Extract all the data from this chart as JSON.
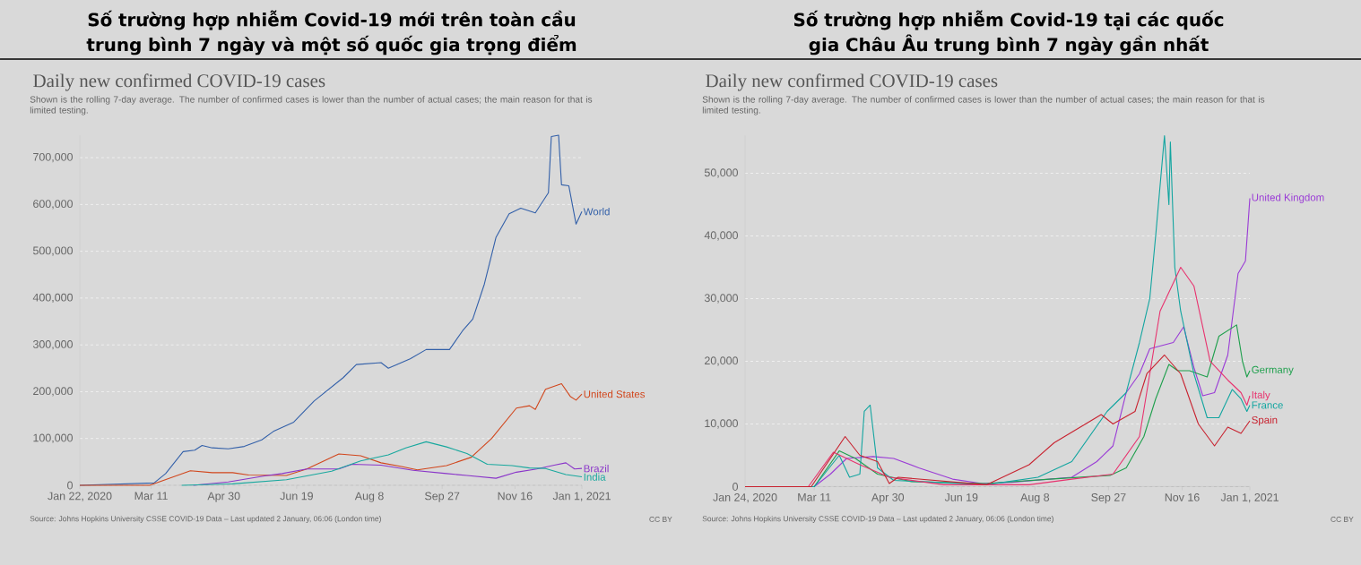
{
  "chart_data": [
    {
      "type": "line",
      "title": "Số trường hợp nhiễm Covid-19 mới trên toàn cầu trung bình 7 ngày và một số quốc gia trọng điểm",
      "subtitle": "Daily new confirmed COVID-19 cases",
      "annotations": [
        "Shown is the rolling 7-day average. The number of confirmed cases is lower than the number of actual cases; the main reason for that is limited testing.",
        "Source: Johns Hopkins University CSSE COVID-19 Data – Last updated 2 January, 06:06 (London time)",
        "CC BY"
      ],
      "xlim": [
        "2020-01-22",
        "2021-01-01"
      ],
      "xticks": [
        {
          "value": "2020-01-22",
          "label": "Jan 22, 2020"
        },
        {
          "value": "2020-03-11",
          "label": "Mar 11"
        },
        {
          "value": "2020-04-30",
          "label": "Apr 30"
        },
        {
          "value": "2020-06-19",
          "label": "Jun 19"
        },
        {
          "value": "2020-08-08",
          "label": "Aug 8"
        },
        {
          "value": "2020-09-27",
          "label": "Sep 27"
        },
        {
          "value": "2020-11-16",
          "label": "Nov 16"
        },
        {
          "value": "2021-01-01",
          "label": "Jan 1, 2021"
        }
      ],
      "ylim": [
        0,
        748000
      ],
      "yticks": [
        0,
        {
          "value": 100000,
          "label": "100,000"
        },
        {
          "value": 200000,
          "label": "200,000"
        },
        {
          "value": 300000,
          "label": "300,000"
        },
        {
          "value": 400000,
          "label": "400,000"
        },
        {
          "value": 500000,
          "label": "500,000"
        },
        {
          "value": 600000,
          "label": "600,000"
        },
        {
          "value": 700000,
          "label": "700,000"
        }
      ],
      "grid": "y",
      "series": [
        {
          "name": "World",
          "color": "#3360a9",
          "x": [
            "2020-01-22",
            "2020-03-13",
            "2020-03-21",
            "2020-04-02",
            "2020-04-10",
            "2020-04-15",
            "2020-04-22",
            "2020-05-03",
            "2020-05-14",
            "2020-05-26",
            "2020-06-03",
            "2020-06-17",
            "2020-07-01",
            "2020-07-21",
            "2020-07-30",
            "2020-08-16",
            "2020-08-21",
            "2020-09-05",
            "2020-09-16",
            "2020-10-02",
            "2020-10-11",
            "2020-10-18",
            "2020-10-26",
            "2020-11-03",
            "2020-11-12",
            "2020-11-20",
            "2020-11-30",
            "2020-12-09",
            "2020-12-11",
            "2020-12-16",
            "2020-12-18",
            "2020-12-23",
            "2020-12-28",
            "2021-01-01"
          ],
          "values": [
            0,
            5000,
            25000,
            72000,
            75000,
            85000,
            80000,
            78000,
            83000,
            97000,
            115000,
            135000,
            180000,
            230000,
            258000,
            262000,
            250000,
            270000,
            290000,
            290000,
            330000,
            355000,
            430000,
            530000,
            580000,
            592000,
            582000,
            625000,
            745000,
            748000,
            642000,
            640000,
            558000,
            585000
          ]
        },
        {
          "name": "United States",
          "color": "#d1461c",
          "x": [
            "2020-01-22",
            "2020-03-10",
            "2020-04-07",
            "2020-04-22",
            "2020-05-06",
            "2020-05-17",
            "2020-06-12",
            "2020-06-26",
            "2020-07-18",
            "2020-08-02",
            "2020-08-16",
            "2020-08-30",
            "2020-09-10",
            "2020-09-30",
            "2020-10-17",
            "2020-10-31",
            "2020-11-17",
            "2020-11-26",
            "2020-11-30",
            "2020-12-07",
            "2020-12-18",
            "2020-12-24",
            "2020-12-28",
            "2021-01-01"
          ],
          "values": [
            0,
            0,
            31000,
            27000,
            27000,
            22000,
            21000,
            35000,
            67000,
            63000,
            48000,
            40000,
            33000,
            42000,
            60000,
            100000,
            165000,
            170000,
            162000,
            205000,
            217000,
            190000,
            182000,
            195000
          ]
        },
        {
          "name": "Brazil",
          "color": "#8a35c9",
          "x": [
            "2020-04-09",
            "2020-05-03",
            "2020-05-28",
            "2020-06-09",
            "2020-06-26",
            "2020-07-18",
            "2020-07-27",
            "2020-08-16",
            "2020-09-07",
            "2020-09-30",
            "2020-10-14",
            "2020-11-03",
            "2020-11-17",
            "2020-12-01",
            "2020-12-13",
            "2020-12-21",
            "2020-12-27",
            "2021-01-01"
          ],
          "values": [
            0,
            7000,
            20000,
            25000,
            35000,
            35000,
            45000,
            43000,
            32000,
            25000,
            21000,
            15000,
            28000,
            35000,
            43000,
            48000,
            35000,
            36000
          ]
        },
        {
          "name": "India",
          "color": "#18a89e",
          "x": [
            "2020-04-01",
            "2020-05-06",
            "2020-06-12",
            "2020-07-13",
            "2020-08-02",
            "2020-08-21",
            "2020-09-02",
            "2020-09-16",
            "2020-09-30",
            "2020-10-14",
            "2020-10-28",
            "2020-11-14",
            "2020-11-26",
            "2020-12-07",
            "2020-12-21",
            "2021-01-01"
          ],
          "values": [
            0,
            3000,
            12000,
            30000,
            52000,
            65000,
            80000,
            93000,
            82000,
            68000,
            45000,
            42000,
            37000,
            36000,
            23000,
            18000
          ]
        }
      ]
    },
    {
      "type": "line",
      "title": "Số trường hợp nhiễm Covid-19 tại các quốc gia Châu Âu trung bình 7 ngày gần nhất",
      "subtitle": "Daily new confirmed COVID-19 cases",
      "annotations": [
        "Shown is the rolling 7-day average. The number of confirmed cases is lower than the number of actual cases; the main reason for that is limited testing.",
        "Source: Johns Hopkins University CSSE COVID-19 Data – Last updated 2 January, 06:06 (London time)",
        "CC BY"
      ],
      "xlim": [
        "2020-01-24",
        "2021-01-01"
      ],
      "xticks": [
        {
          "value": "2020-01-24",
          "label": "Jan 24, 2020"
        },
        {
          "value": "2020-03-11",
          "label": "Mar 11"
        },
        {
          "value": "2020-04-30",
          "label": "Apr 30"
        },
        {
          "value": "2020-06-19",
          "label": "Jun 19"
        },
        {
          "value": "2020-08-08",
          "label": "Aug 8"
        },
        {
          "value": "2020-09-27",
          "label": "Sep 27"
        },
        {
          "value": "2020-11-16",
          "label": "Nov 16"
        },
        {
          "value": "2021-01-01",
          "label": "Jan 1, 2021"
        }
      ],
      "ylim": [
        0,
        56000
      ],
      "yticks": [
        0,
        {
          "value": 10000,
          "label": "10,000"
        },
        {
          "value": 20000,
          "label": "20,000"
        },
        {
          "value": 30000,
          "label": "30,000"
        },
        {
          "value": 40000,
          "label": "40,000"
        },
        {
          "value": 50000,
          "label": "50,000"
        }
      ],
      "grid": "y",
      "series": [
        {
          "name": "United Kingdom",
          "color": "#9a3bd6",
          "x": [
            "2020-01-24",
            "2020-03-11",
            "2020-03-22",
            "2020-04-02",
            "2020-04-20",
            "2020-05-04",
            "2020-05-21",
            "2020-06-13",
            "2020-07-03",
            "2020-07-23",
            "2020-09-02",
            "2020-09-19",
            "2020-09-30",
            "2020-10-09",
            "2020-10-18",
            "2020-10-25",
            "2020-11-10",
            "2020-11-17",
            "2020-11-24",
            "2020-11-30",
            "2020-12-08",
            "2020-12-17",
            "2020-12-24",
            "2020-12-29",
            "2021-01-01"
          ],
          "values": [
            0,
            0,
            2000,
            4500,
            4800,
            4500,
            3000,
            1200,
            500,
            700,
            1500,
            4000,
            6500,
            15000,
            18000,
            22000,
            23000,
            25500,
            19000,
            14500,
            15000,
            21000,
            34000,
            36000,
            46000
          ]
        },
        {
          "name": "Germany",
          "color": "#1e9f4c",
          "x": [
            "2020-01-24",
            "2020-03-11",
            "2020-03-28",
            "2020-04-08",
            "2020-04-23",
            "2020-05-16",
            "2020-07-06",
            "2020-08-18",
            "2020-09-28",
            "2020-10-09",
            "2020-10-21",
            "2020-10-29",
            "2020-11-07",
            "2020-11-13",
            "2020-11-21",
            "2020-12-03",
            "2020-12-11",
            "2020-12-23",
            "2020-12-27",
            "2020-12-30",
            "2021-01-01"
          ],
          "values": [
            0,
            0,
            5700,
            4500,
            2000,
            800,
            500,
            1200,
            1800,
            3000,
            8000,
            14000,
            19500,
            18500,
            18500,
            17500,
            24000,
            25800,
            20000,
            17500,
            18500
          ]
        },
        {
          "name": "France",
          "color": "#12a5a0",
          "x": [
            "2020-01-24",
            "2020-03-11",
            "2020-03-28",
            "2020-04-04",
            "2020-04-11",
            "2020-04-14",
            "2020-04-18",
            "2020-04-23",
            "2020-05-04",
            "2020-07-06",
            "2020-08-10",
            "2020-09-02",
            "2020-09-26",
            "2020-10-09",
            "2020-10-18",
            "2020-10-25",
            "2020-10-29",
            "2020-11-04",
            "2020-11-07",
            "2020-11-08",
            "2020-11-11",
            "2020-11-15",
            "2020-11-24",
            "2020-12-03",
            "2020-12-11",
            "2020-12-20",
            "2020-12-26",
            "2020-12-30",
            "2021-01-01"
          ],
          "values": [
            0,
            0,
            5000,
            1500,
            2000,
            12000,
            13000,
            3000,
            1000,
            300,
            1500,
            4000,
            12000,
            15000,
            23000,
            30000,
            40000,
            56000,
            45000,
            55000,
            35000,
            28000,
            18000,
            11000,
            11000,
            15500,
            14000,
            12000,
            13000
          ]
        },
        {
          "name": "Italy",
          "color": "#e8326e",
          "x": [
            "2020-01-24",
            "2020-03-07",
            "2020-03-24",
            "2020-04-11",
            "2020-05-01",
            "2020-06-07",
            "2020-08-04",
            "2020-09-02",
            "2020-09-30",
            "2020-10-18",
            "2020-11-01",
            "2020-11-15",
            "2020-11-24",
            "2020-12-05",
            "2020-12-17",
            "2020-12-26",
            "2020-12-30",
            "2021-01-01"
          ],
          "values": [
            0,
            0,
            5500,
            3500,
            1500,
            300,
            300,
            1200,
            2000,
            8000,
            28000,
            35000,
            32000,
            20000,
            17000,
            15000,
            13000,
            14500
          ]
        },
        {
          "name": "Spain",
          "color": "#c8222f",
          "x": [
            "2020-01-24",
            "2020-03-09",
            "2020-04-01",
            "2020-04-11",
            "2020-04-23",
            "2020-05-01",
            "2020-05-07",
            "2020-07-06",
            "2020-08-04",
            "2020-08-21",
            "2020-09-22",
            "2020-09-30",
            "2020-10-15",
            "2020-10-23",
            "2020-11-04",
            "2020-11-15",
            "2020-11-27",
            "2020-12-08",
            "2020-12-17",
            "2020-12-26",
            "2021-01-01"
          ],
          "values": [
            0,
            0,
            8000,
            5000,
            4000,
            500,
            1500,
            300,
            3500,
            7000,
            11500,
            10000,
            12000,
            18000,
            21000,
            18000,
            10000,
            6500,
            9500,
            8500,
            10500
          ]
        }
      ]
    }
  ]
}
